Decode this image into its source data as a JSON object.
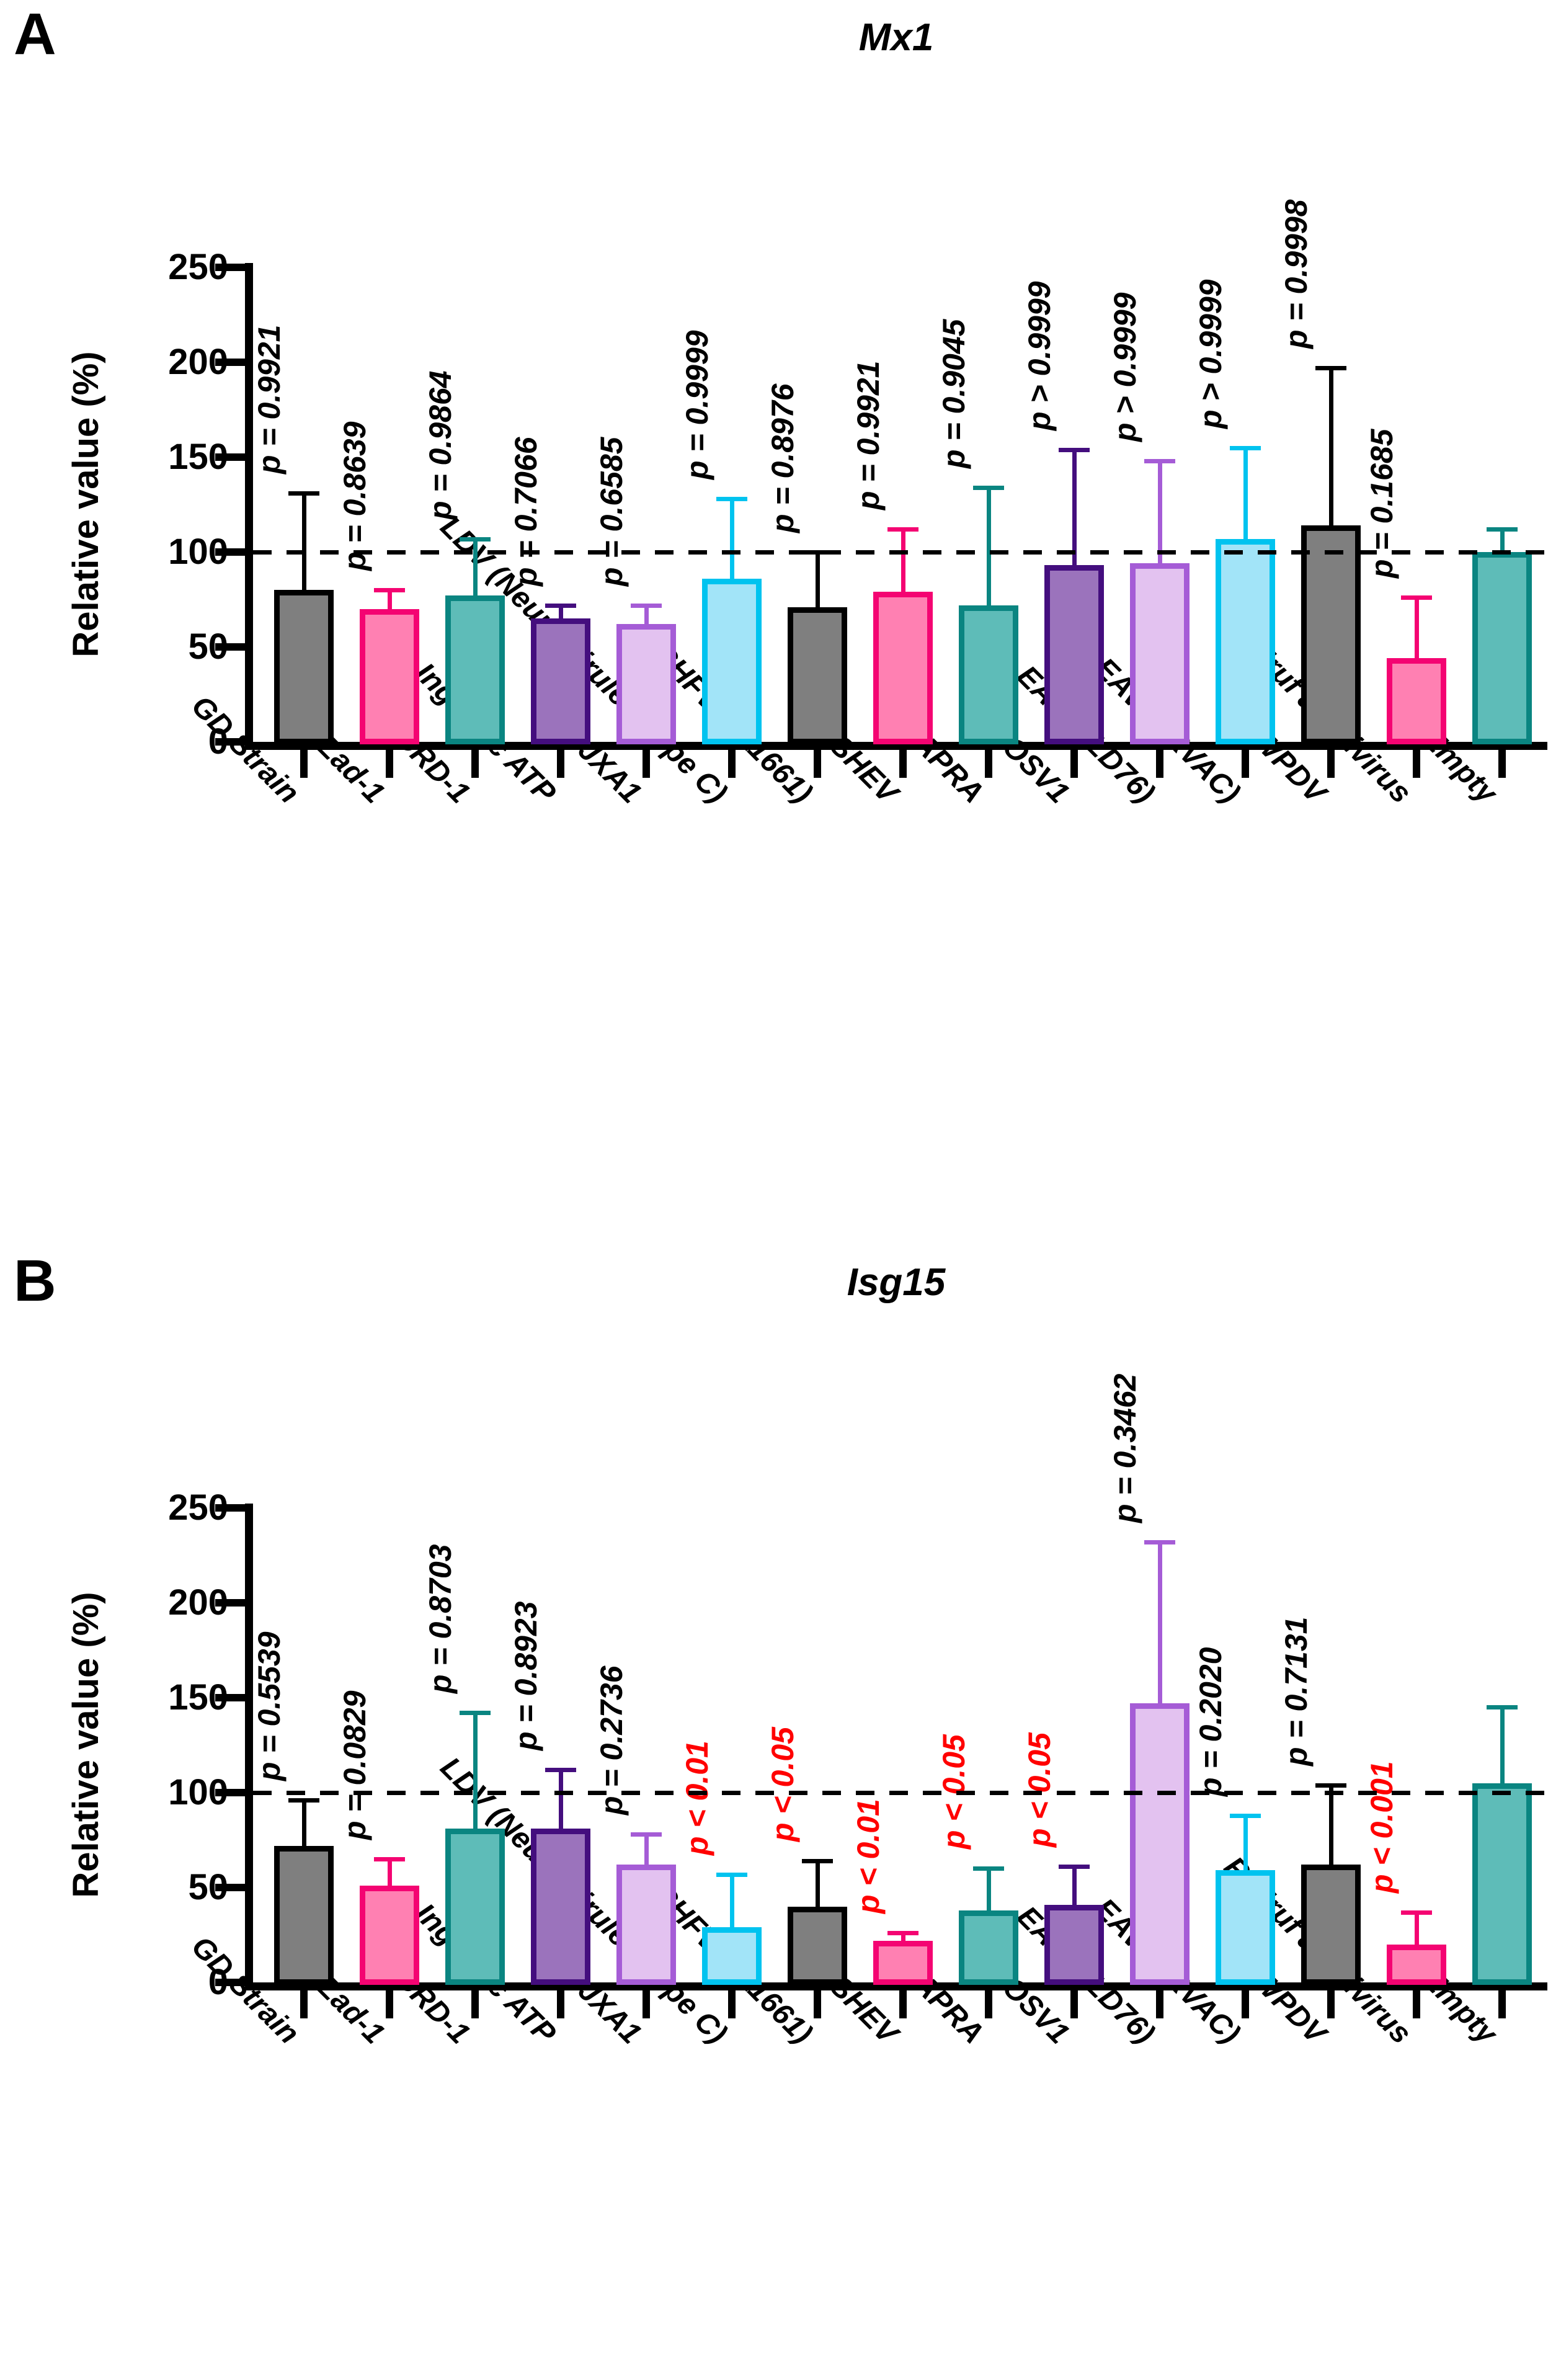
{
  "figure": {
    "panel_a_letter": "A",
    "panel_b_letter": "B",
    "ylabel": "Relative value (%)",
    "significant_color": "#FF0000",
    "normal_color": "#000000"
  },
  "palette": {
    "gray": {
      "fill": "#7F7F7F",
      "border": "#000000"
    },
    "pink": {
      "fill": "#FF80B2",
      "border": "#F40472"
    },
    "teal": {
      "fill": "#5EBCB8",
      "border": "#0A8581"
    },
    "purple": {
      "fill": "#9B73BC",
      "border": "#440E7E"
    },
    "lavender": {
      "fill": "#E3C2F0",
      "border": "#A55CD6"
    },
    "cyan": {
      "fill": "#A2E4F8",
      "border": "#00C3EF"
    }
  },
  "chart_data": [
    {
      "type": "bar",
      "panel_label": "A",
      "title": "Mx1",
      "ylabel": "Relative value (%)",
      "ylim": [
        0,
        250
      ],
      "yticks": [
        0,
        50,
        100,
        150,
        200,
        250
      ],
      "reference_line": 100,
      "grid": false,
      "legend": "none",
      "categories": [
        "GD Strain",
        "Zad-1",
        "EDRD-1",
        "Ingelvac ATP",
        "JXA1",
        "LDV (Neuro-virulent type C)",
        "SHFV (B11661)",
        "SHEV",
        "APRA",
        "OSV1",
        "EAV (PLD76)",
        "EAV (ARVAC)",
        "WPDV",
        "RtMruf arterivirus",
        "Empty"
      ],
      "values": [
        80,
        70,
        77,
        65,
        62,
        86,
        71,
        79,
        72,
        93,
        94,
        107,
        114,
        44,
        100
      ],
      "error_top": [
        132,
        81,
        108,
        73,
        73,
        129,
        101,
        113,
        135,
        155,
        149,
        156,
        198,
        77,
        113
      ],
      "bar_colors": [
        "gray",
        "pink",
        "teal",
        "purple",
        "lavender",
        "cyan",
        "gray",
        "pink",
        "teal",
        "purple",
        "lavender",
        "cyan",
        "gray",
        "pink",
        "teal"
      ],
      "p_labels": [
        "p = 0.9921",
        "p = 0.8639",
        "p = 0.9864",
        "p = 0.7066",
        "p = 0.6585",
        "p = 0.9999",
        "p = 0.8976",
        "p = 0.9921",
        "p = 0.9045",
        "p > 0.9999",
        "p > 0.9999",
        "p > 0.9999",
        "p = 0.9998",
        "p = 0.1685",
        ""
      ],
      "p_colors": [
        "black",
        "black",
        "black",
        "black",
        "black",
        "black",
        "black",
        "black",
        "black",
        "black",
        "black",
        "black",
        "black",
        "black",
        ""
      ]
    },
    {
      "type": "bar",
      "panel_label": "B",
      "title": "Isg15",
      "ylabel": "Relative value (%)",
      "ylim": [
        0,
        250
      ],
      "yticks": [
        0,
        50,
        100,
        150,
        200,
        250
      ],
      "reference_line": 100,
      "grid": false,
      "legend": "none",
      "categories": [
        "GD Strain",
        "Zad-1",
        "EDRD-1",
        "Ingelvac ATP",
        "JXA1",
        "LDV (Neuro-virulent type C)",
        "SHFV (B11661)",
        "SHEV",
        "APRA",
        "OSV1",
        "EAV (PLD76)",
        "EAV (ARVAC)",
        "WPDV",
        "RtMruf arterivirus",
        "Empty"
      ],
      "values": [
        72,
        51,
        81,
        81,
        62,
        29,
        40,
        22,
        38,
        41,
        147,
        59,
        62,
        20,
        105
      ],
      "error_top": [
        97,
        66,
        143,
        113,
        79,
        58,
        65,
        27,
        61,
        62,
        233,
        89,
        105,
        38,
        146
      ],
      "bar_colors": [
        "gray",
        "pink",
        "teal",
        "purple",
        "lavender",
        "cyan",
        "gray",
        "pink",
        "teal",
        "purple",
        "lavender",
        "cyan",
        "gray",
        "pink",
        "teal"
      ],
      "p_labels": [
        "p = 0.5539",
        "p = 0.0829",
        "p = 0.8703",
        "p = 0.8923",
        "p = 0.2736",
        "p < 0.01",
        "p < 0.05",
        "p < 0.01",
        "p < 0.05",
        "p < 0.05",
        "p = 0.3462",
        "p = 0.2020",
        "p = 0.7131",
        "p < 0.001",
        ""
      ],
      "p_colors": [
        "black",
        "black",
        "black",
        "black",
        "black",
        "red",
        "red",
        "red",
        "red",
        "red",
        "black",
        "black",
        "black",
        "red",
        ""
      ]
    }
  ]
}
